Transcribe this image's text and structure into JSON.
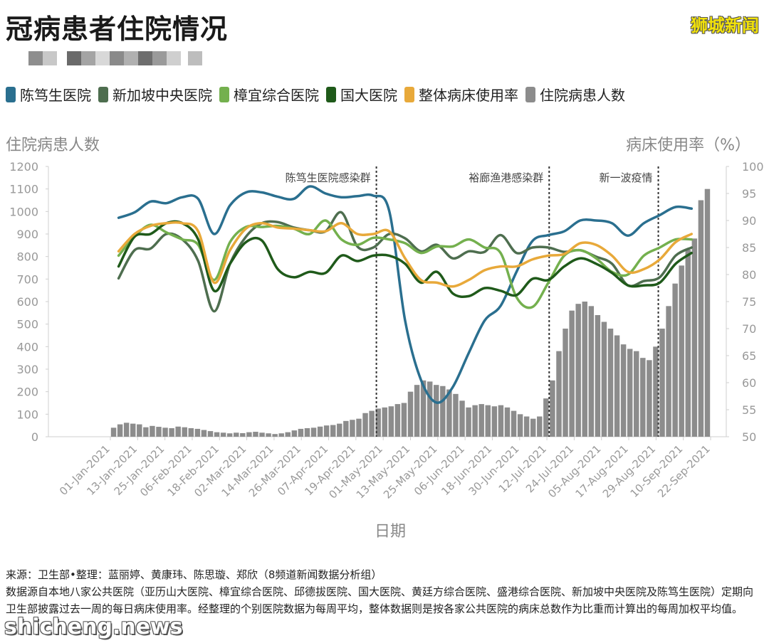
{
  "title": "冠病患者住院情况",
  "brand": "狮城新闻",
  "legend": [
    {
      "name": "陈笃生医院",
      "color": "#2a6f8f"
    },
    {
      "name": "新加坡中央医院",
      "color": "#4e6e4f"
    },
    {
      "name": "樟宜综合医院",
      "color": "#74b04e"
    },
    {
      "name": "国大医院",
      "color": "#1f5a1a"
    },
    {
      "name": "整体病床使用率",
      "color": "#e8a93a"
    },
    {
      "name": "住院病患人数",
      "color": "#8c8c8c"
    }
  ],
  "left_axis_title": "住院病患人数",
  "right_axis_title": "病床使用率（%）",
  "x_axis_title": "日期",
  "footer": {
    "line1": "来源：卫生部•整理：蓝丽婷、黄康玮、陈思璇、郑欣（8频道新闻数据分析组）",
    "line2": "数据源自本地八家公共医院（亚历山大医院、樟宜综合医院、邱德拔医院、国大医院、黄廷方综合医院、盛港综合医院、新加坡中央医院及陈笃生医院）定期向卫生部披露过去一周的每日病床使用率。经整理的个别医院数据为每周平均，整体数据则是按各家公共医院的病床总数作为比重而计算出的每周加权平均值。"
  },
  "watermark": "shicheng.news",
  "chart_data": {
    "type": "line",
    "x_tick_labels": [
      "01-Jan-2021",
      "13-Jan-2021",
      "25-Jan-2021",
      "06-Feb-2021",
      "18-Feb-2021",
      "02-Mar-2021",
      "14-Mar-2021",
      "26-Mar-2021",
      "07-Apr-2021",
      "19-Apr-2021",
      "01-May-2021",
      "13-May-2021",
      "25-May-2021",
      "06-Jun-2021",
      "18-Jun-2021",
      "30-Jun-2021",
      "12-Jul-2021",
      "24-Jul-2021",
      "05-Aug-2021",
      "17-Aug-2021",
      "29-Aug-2021",
      "10-Sep-2021",
      "22-Sep-2021"
    ],
    "left_axis": {
      "label": "住院病患人数",
      "min": 0,
      "max": 1200,
      "ticks": [
        0,
        100,
        200,
        300,
        400,
        500,
        600,
        700,
        800,
        900,
        1000,
        1100,
        1200
      ]
    },
    "right_axis": {
      "label": "病床使用率（%）",
      "min": 50,
      "max": 100,
      "ticks": [
        50,
        55,
        60,
        65,
        70,
        75,
        80,
        85,
        90,
        95,
        100
      ]
    },
    "annotations": [
      {
        "label": "陈笃生医院感染群",
        "date": "28-Apr-2021"
      },
      {
        "label": "裕廊渔港感染群",
        "date": "13-Jul-2021"
      },
      {
        "label": "新一波疫情",
        "date": "30-Aug-2021"
      }
    ],
    "weeks": [
      "04-Jan",
      "11-Jan",
      "18-Jan",
      "25-Jan",
      "01-Feb",
      "08-Feb",
      "15-Feb",
      "22-Feb",
      "01-Mar",
      "08-Mar",
      "15-Mar",
      "22-Mar",
      "29-Mar",
      "05-Apr",
      "12-Apr",
      "19-Apr",
      "26-Apr",
      "03-May",
      "10-May",
      "17-May",
      "24-May",
      "31-May",
      "07-Jun",
      "14-Jun",
      "21-Jun",
      "28-Jun",
      "05-Jul",
      "12-Jul",
      "19-Jul",
      "26-Jul",
      "02-Aug",
      "09-Aug",
      "16-Aug",
      "23-Aug",
      "30-Aug",
      "06-Sep",
      "13-Sep"
    ],
    "series": [
      {
        "name": "陈笃生医院",
        "axis": "right",
        "color": "#2a6f8f",
        "values": [
          90.5,
          91.5,
          93.5,
          93.2,
          94.3,
          94.0,
          87.5,
          92.8,
          95.2,
          95.2,
          94.4,
          94.0,
          96.3,
          95.0,
          94.3,
          94.5,
          94.6,
          91.8,
          71.5,
          60.5,
          56.3,
          59.2,
          65.5,
          71.5,
          74.2,
          80.5,
          86.2,
          87.3,
          88.0,
          90.0,
          90.0,
          89.5,
          87.2,
          89.5,
          91.0,
          92.5,
          92.2
        ]
      },
      {
        "name": "新加坡中央医院",
        "axis": "right",
        "color": "#4e6e4f",
        "values": [
          79.3,
          84.5,
          84.8,
          87.5,
          86.5,
          82.5,
          73.2,
          82.0,
          87.0,
          89.5,
          89.7,
          88.7,
          88.2,
          88.0,
          91.5,
          85.2,
          85.0,
          87.5,
          86.7,
          84.3,
          85.5,
          83.0,
          84.3,
          84.2,
          87.3,
          84.0,
          85.0,
          85.0,
          84.2,
          84.5,
          83.3,
          82.0,
          78.0,
          78.8,
          79.5,
          83.5,
          85.0
        ]
      },
      {
        "name": "樟宜综合医院",
        "axis": "right",
        "color": "#74b04e",
        "values": [
          83.5,
          87.0,
          89.2,
          87.8,
          86.5,
          85.5,
          79.0,
          86.0,
          88.8,
          88.8,
          89.0,
          88.5,
          87.5,
          90.0,
          86.5,
          85.5,
          86.8,
          86.5,
          85.8,
          84.0,
          85.2,
          85.2,
          86.5,
          85.0,
          84.0,
          75.8,
          74.0,
          78.5,
          83.5,
          84.5,
          83.0,
          80.5,
          80.0,
          83.5,
          85.0,
          86.5,
          86.5
        ]
      },
      {
        "name": "国大医院",
        "axis": "right",
        "color": "#1f5a1a",
        "values": [
          81.5,
          87.0,
          87.5,
          89.5,
          89.5,
          86.5,
          77.0,
          82.0,
          86.0,
          86.3,
          81.0,
          79.5,
          80.5,
          80.3,
          83.5,
          82.5,
          83.5,
          83.5,
          82.0,
          78.5,
          80.5,
          76.5,
          76.0,
          77.5,
          77.0,
          76.2,
          79.2,
          79.0,
          81.5,
          83.0,
          82.0,
          80.3,
          78.0,
          78.0,
          78.5,
          82.0,
          84.0
        ]
      },
      {
        "name": "整体病床使用率",
        "axis": "right",
        "color": "#e8a93a",
        "values": [
          84.3,
          87.5,
          89.0,
          89.5,
          89.5,
          88.0,
          78.5,
          84.5,
          88.5,
          89.5,
          88.7,
          88.5,
          88.2,
          88.0,
          89.5,
          87.5,
          87.5,
          88.0,
          83.0,
          79.0,
          78.5,
          77.8,
          79.0,
          80.8,
          81.5,
          81.5,
          82.8,
          83.5,
          83.8,
          85.8,
          85.5,
          83.5,
          80.5,
          81.0,
          82.8,
          86.0,
          87.5
        ]
      },
      {
        "name": "住院病患人数",
        "axis": "left",
        "type": "bar",
        "color": "#8c8c8c",
        "values": [
          40,
          55,
          62,
          58,
          55,
          42,
          48,
          44,
          40,
          38,
          45,
          42,
          38,
          35,
          30,
          25,
          20,
          18,
          15,
          18,
          16,
          20,
          22,
          18,
          15,
          12,
          15,
          20,
          28,
          35,
          38,
          40,
          45,
          50,
          52,
          58,
          70,
          75,
          80,
          105,
          115,
          125,
          130,
          135,
          145,
          150,
          200,
          230,
          250,
          245,
          230,
          225,
          210,
          190,
          160,
          130,
          140,
          145,
          140,
          135,
          140,
          130,
          115,
          100,
          90,
          80,
          90,
          170,
          250,
          380,
          480,
          560,
          590,
          600,
          580,
          540,
          510,
          480,
          450,
          410,
          390,
          380,
          350,
          340,
          400,
          480,
          580,
          680,
          760,
          830,
          880,
          1050,
          1100
        ]
      }
    ]
  }
}
